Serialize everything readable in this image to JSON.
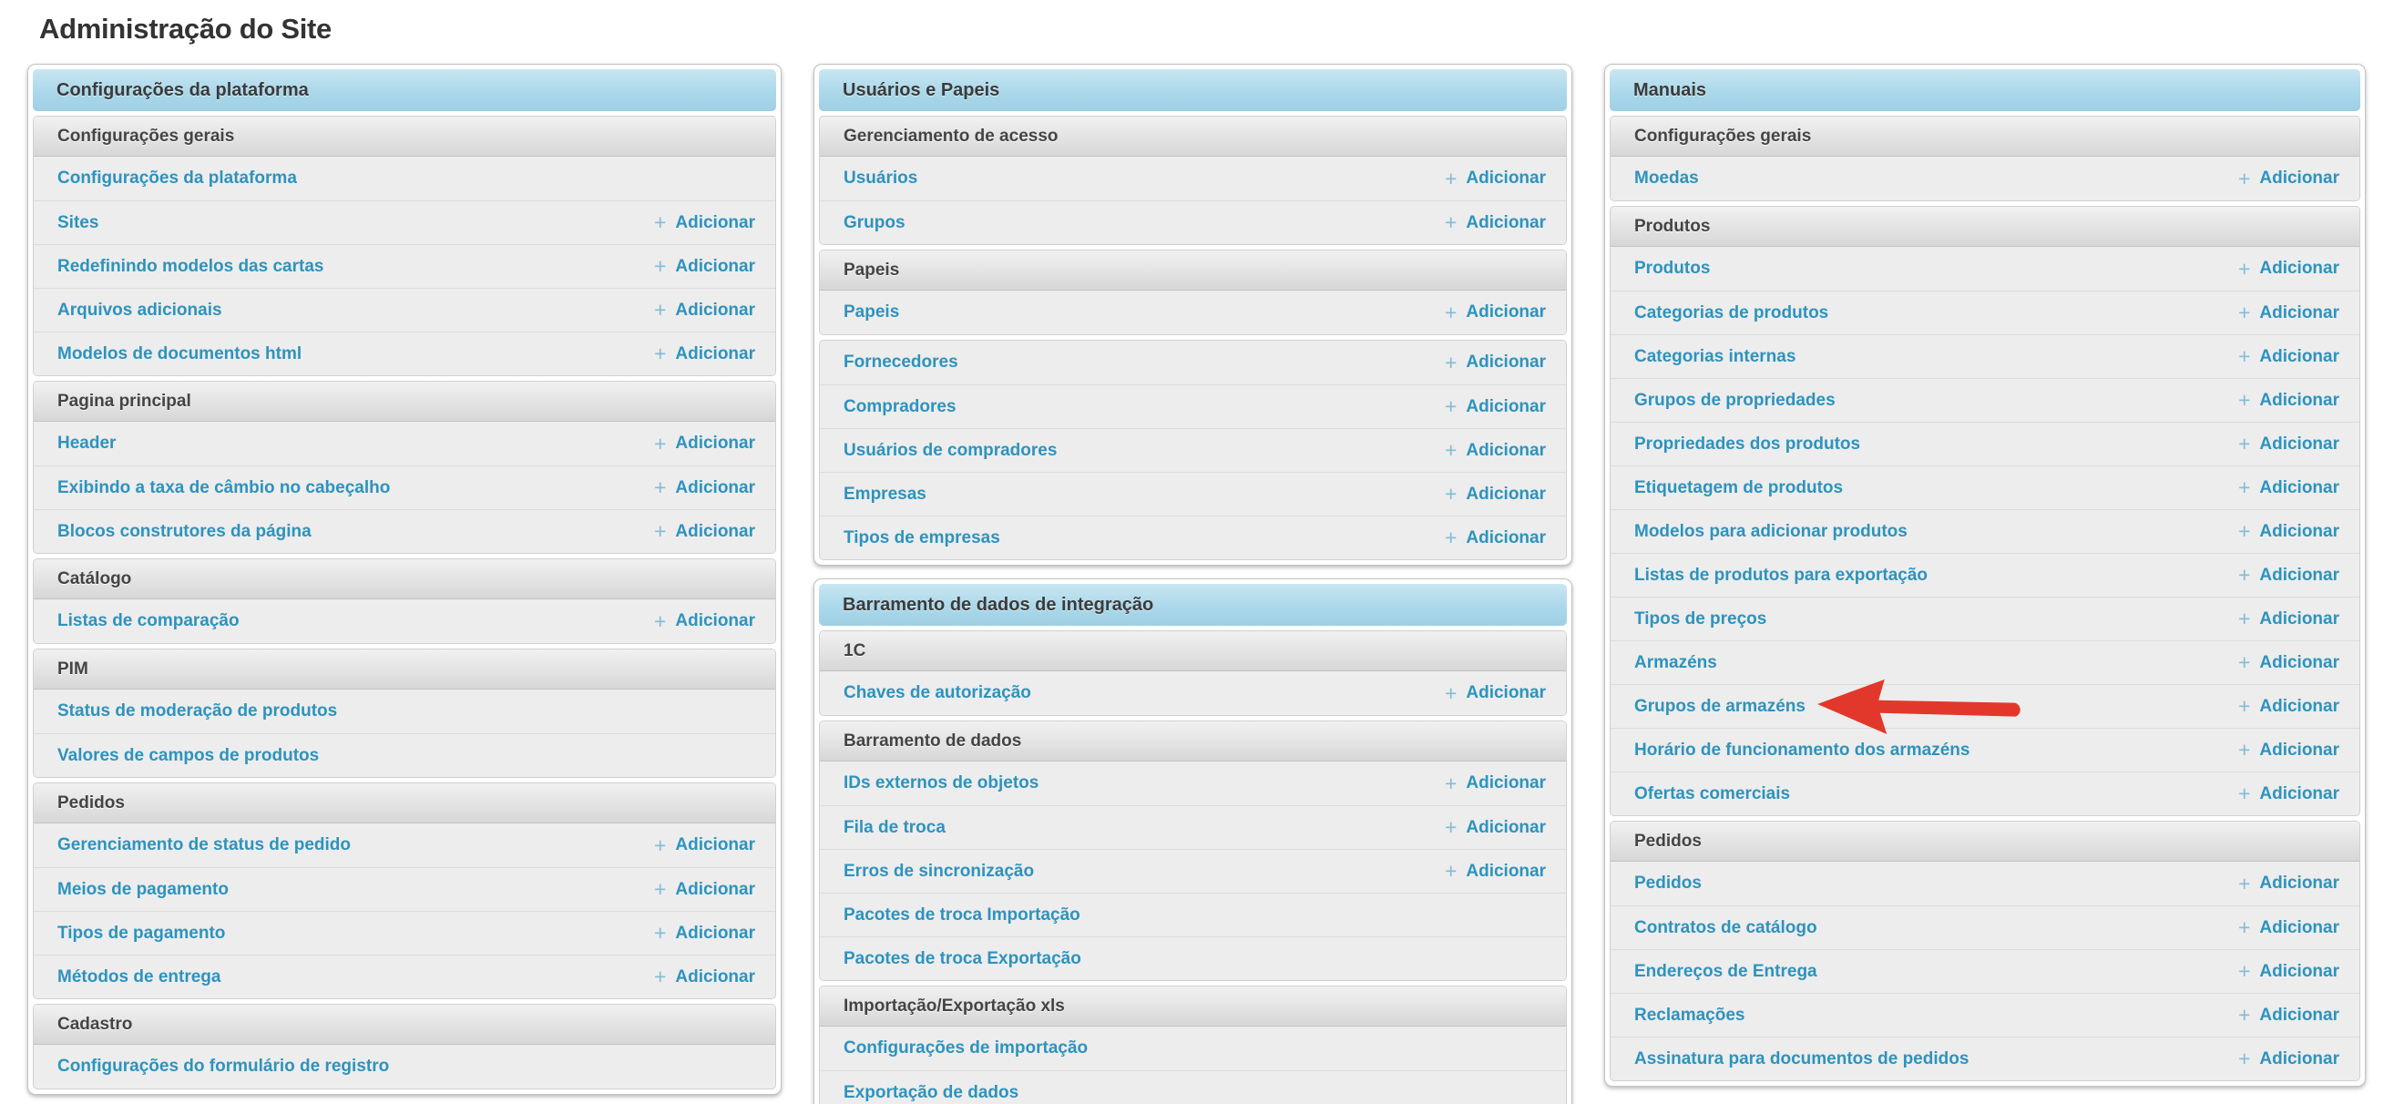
{
  "page": {
    "title": "Administração do Site"
  },
  "labels": {
    "add": "Adicionar",
    "plus": "+"
  },
  "colors": {
    "link": "#2d93be",
    "plus_icon": "#83bcd7",
    "panel_header_bg": "#abd8ea",
    "arrow": "#e2382c"
  },
  "annotation": {
    "shape": "left-pointing-arrow",
    "color": "#e2382c",
    "points_to": "Grupos de armazéns"
  },
  "columns": [
    {
      "panels": [
        {
          "title": "Configurações da plataforma",
          "sections": [
            {
              "header": "Configurações gerais",
              "rows": [
                {
                  "label": "Configurações da plataforma",
                  "add": false
                },
                {
                  "label": "Sites",
                  "add": true
                },
                {
                  "label": "Redefinindo modelos das cartas",
                  "add": true
                },
                {
                  "label": "Arquivos adicionais",
                  "add": true
                },
                {
                  "label": "Modelos de documentos html",
                  "add": true
                }
              ]
            },
            {
              "header": "Pagina principal",
              "rows": [
                {
                  "label": "Header",
                  "add": true
                },
                {
                  "label": "Exibindo a taxa de câmbio no cabeçalho",
                  "add": true
                },
                {
                  "label": "Blocos construtores da página",
                  "add": true
                }
              ]
            },
            {
              "header": "Catálogo",
              "rows": [
                {
                  "label": "Listas de comparação",
                  "add": true
                }
              ]
            },
            {
              "header": "PIM",
              "rows": [
                {
                  "label": "Status de moderação de produtos",
                  "add": false
                },
                {
                  "label": "Valores de campos de produtos",
                  "add": false
                }
              ]
            },
            {
              "header": "Pedidos",
              "rows": [
                {
                  "label": "Gerenciamento de status de pedido",
                  "add": true
                },
                {
                  "label": "Meios de pagamento",
                  "add": true
                },
                {
                  "label": "Tipos de pagamento",
                  "add": true
                },
                {
                  "label": "Métodos de entrega",
                  "add": true
                }
              ]
            },
            {
              "header": "Cadastro",
              "rows": [
                {
                  "label": "Configurações do formulário de registro",
                  "add": false
                }
              ]
            }
          ]
        }
      ]
    },
    {
      "panels": [
        {
          "title": "Usuários e Papeis",
          "sections": [
            {
              "header": "Gerenciamento de acesso",
              "rows": [
                {
                  "label": "Usuários",
                  "add": true
                },
                {
                  "label": "Grupos",
                  "add": true
                }
              ]
            },
            {
              "header": "Papeis",
              "rows": [
                {
                  "label": "Papeis",
                  "add": true
                }
              ]
            },
            {
              "header": null,
              "rows": [
                {
                  "label": "Fornecedores",
                  "add": true
                },
                {
                  "label": "Compradores",
                  "add": true
                },
                {
                  "label": "Usuários de compradores",
                  "add": true
                },
                {
                  "label": "Empresas",
                  "add": true
                },
                {
                  "label": "Tipos de empresas",
                  "add": true
                }
              ]
            }
          ]
        },
        {
          "title": "Barramento de dados de integração",
          "sections": [
            {
              "header": "1C",
              "rows": [
                {
                  "label": "Chaves de autorização",
                  "add": true
                }
              ]
            },
            {
              "header": "Barramento de dados",
              "rows": [
                {
                  "label": "IDs externos de objetos",
                  "add": true
                },
                {
                  "label": "Fila de troca",
                  "add": true
                },
                {
                  "label": "Erros de sincronização",
                  "add": true
                },
                {
                  "label": "Pacotes de troca Importação",
                  "add": false
                },
                {
                  "label": "Pacotes de troca Exportação",
                  "add": false
                }
              ]
            },
            {
              "header": "Importação/Exportação xls",
              "rows": [
                {
                  "label": "Configurações de importação",
                  "add": false
                },
                {
                  "label": "Exportação de dados",
                  "add": false
                }
              ]
            }
          ]
        }
      ]
    },
    {
      "panels": [
        {
          "title": "Manuais",
          "sections": [
            {
              "header": "Configurações gerais",
              "rows": [
                {
                  "label": "Moedas",
                  "add": true
                }
              ]
            },
            {
              "header": "Produtos",
              "rows": [
                {
                  "label": "Produtos",
                  "add": true
                },
                {
                  "label": "Categorias de produtos",
                  "add": true
                },
                {
                  "label": "Categorias internas",
                  "add": true
                },
                {
                  "label": "Grupos de propriedades",
                  "add": true
                },
                {
                  "label": "Propriedades dos produtos",
                  "add": true
                },
                {
                  "label": "Etiquetagem de produtos",
                  "add": true
                },
                {
                  "label": "Modelos para adicionar produtos",
                  "add": true
                },
                {
                  "label": "Listas de produtos para exportação",
                  "add": true
                },
                {
                  "label": "Tipos de preços",
                  "add": true
                },
                {
                  "label": "Armazéns",
                  "add": true
                },
                {
                  "label": "Grupos de armazéns",
                  "add": true,
                  "arrow": true
                },
                {
                  "label": "Horário de funcionamento dos armazéns",
                  "add": true
                },
                {
                  "label": "Ofertas comerciais",
                  "add": true
                }
              ]
            },
            {
              "header": "Pedidos",
              "rows": [
                {
                  "label": "Pedidos",
                  "add": true
                },
                {
                  "label": "Contratos de catálogo",
                  "add": true
                },
                {
                  "label": "Endereços de Entrega",
                  "add": true
                },
                {
                  "label": "Reclamações",
                  "add": true
                },
                {
                  "label": "Assinatura para documentos de pedidos",
                  "add": true
                }
              ]
            }
          ]
        }
      ]
    }
  ]
}
